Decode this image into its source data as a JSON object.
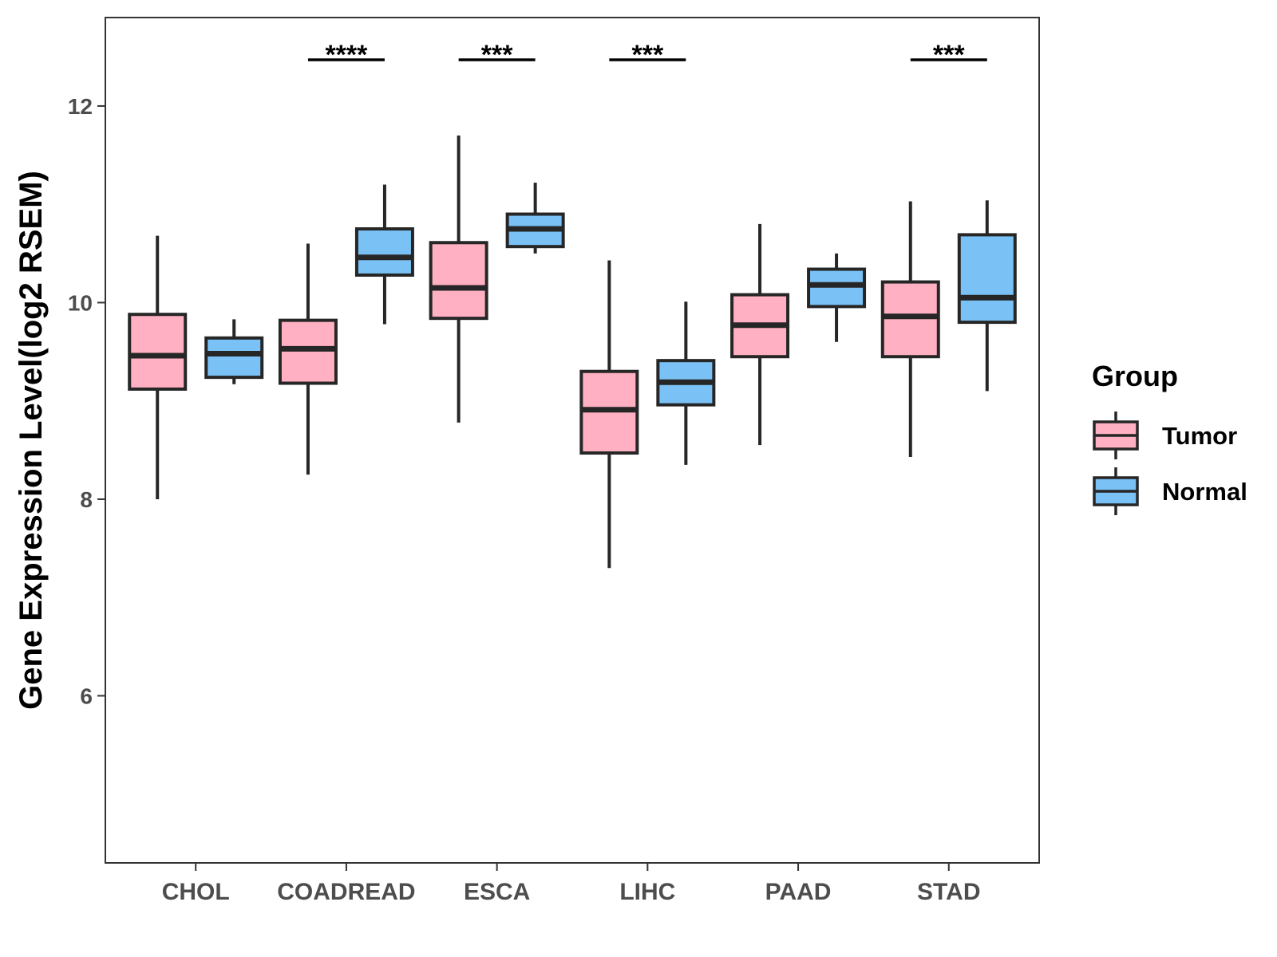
{
  "chart_data": {
    "type": "boxplot",
    "title": "",
    "xlabel": "",
    "ylabel": "Gene Expression Level(log2 RSEM)",
    "ylim": [
      4.3,
      12.9
    ],
    "yticks": [
      6,
      8,
      10,
      12
    ],
    "grid": false,
    "legend_position": "right",
    "categories": [
      "CHOL",
      "COADREAD",
      "ESCA",
      "LIHC",
      "PAAD",
      "STAD"
    ],
    "groups": [
      {
        "name": "Tumor",
        "color": "#FFB0C2"
      },
      {
        "name": "Normal",
        "color": "#7AC1F5"
      }
    ],
    "boxes": {
      "Tumor": [
        {
          "min": 8.0,
          "q1": 9.12,
          "median": 9.46,
          "q3": 9.88,
          "max": 10.68
        },
        {
          "min": 8.25,
          "q1": 9.18,
          "median": 9.53,
          "q3": 9.82,
          "max": 10.6
        },
        {
          "min": 8.78,
          "q1": 9.84,
          "median": 10.15,
          "q3": 10.61,
          "max": 11.7
        },
        {
          "min": 7.3,
          "q1": 8.47,
          "median": 8.91,
          "q3": 9.3,
          "max": 10.43
        },
        {
          "min": 8.55,
          "q1": 9.45,
          "median": 9.77,
          "q3": 10.08,
          "max": 10.8
        },
        {
          "min": 8.43,
          "q1": 9.45,
          "median": 9.86,
          "q3": 10.21,
          "max": 11.03
        }
      ],
      "Normal": [
        {
          "min": 9.17,
          "q1": 9.24,
          "median": 9.48,
          "q3": 9.64,
          "max": 9.83
        },
        {
          "min": 9.78,
          "q1": 10.28,
          "median": 10.46,
          "q3": 10.75,
          "max": 11.2
        },
        {
          "min": 10.5,
          "q1": 10.57,
          "median": 10.75,
          "q3": 10.9,
          "max": 11.22
        },
        {
          "min": 8.35,
          "q1": 8.96,
          "median": 9.19,
          "q3": 9.41,
          "max": 10.01
        },
        {
          "min": 9.6,
          "q1": 9.96,
          "median": 10.18,
          "q3": 10.34,
          "max": 10.5
        },
        {
          "min": 9.1,
          "q1": 9.8,
          "median": 10.05,
          "q3": 10.69,
          "max": 11.04
        }
      ]
    },
    "significance": [
      {
        "category": "COADREAD",
        "label": "****"
      },
      {
        "category": "ESCA",
        "label": "***"
      },
      {
        "category": "LIHC",
        "label": "***"
      },
      {
        "category": "STAD",
        "label": "***"
      }
    ],
    "legend": {
      "title": "Group",
      "entries": [
        "Tumor",
        "Normal"
      ]
    }
  }
}
